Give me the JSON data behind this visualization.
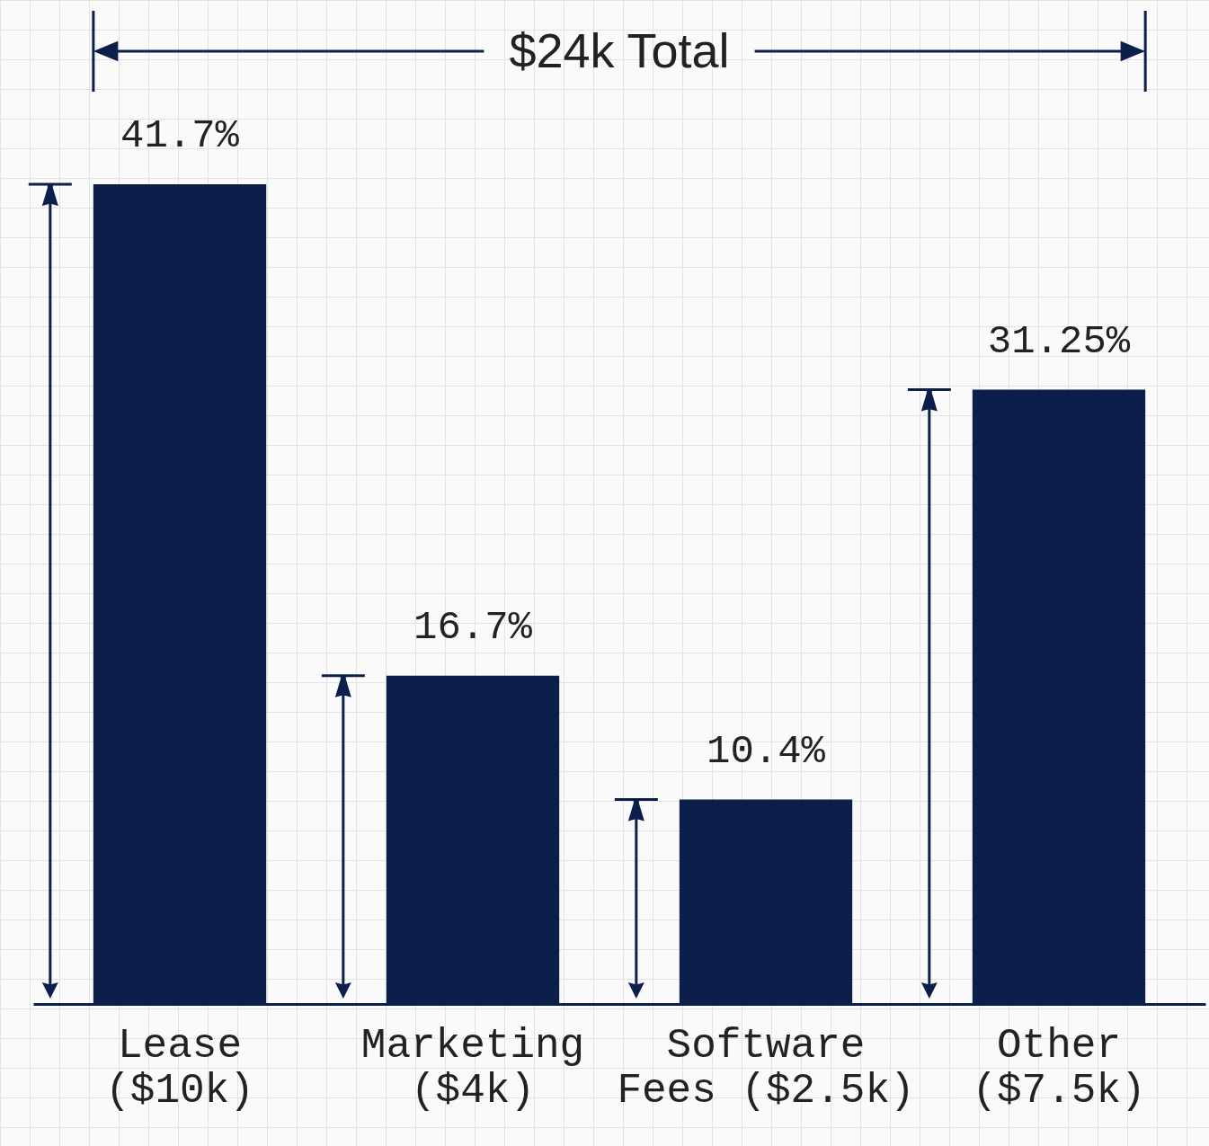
{
  "chart_data": {
    "type": "bar",
    "categories": [
      "Lease\n($10k)",
      "Marketing\n($4k)",
      "Software\nFees ($2.5k)",
      "Other\n($7.5k)"
    ],
    "values": [
      41.7,
      16.7,
      10.4,
      31.25
    ],
    "value_labels": [
      "41.7%",
      "16.7%",
      "10.4%",
      "31.25%"
    ],
    "color": "#0c1f4b",
    "annotations": [
      "$24k Total"
    ]
  }
}
